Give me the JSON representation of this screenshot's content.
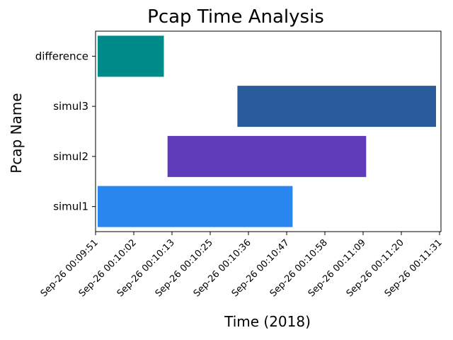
{
  "chart_data": {
    "type": "bar",
    "orientation": "horizontal-timeline",
    "title": "Pcap Time Analysis",
    "xlabel": "Time (2018)",
    "ylabel": "Pcap Name",
    "categories": [
      "simul1",
      "simul2",
      "simul3",
      "difference"
    ],
    "bars": [
      {
        "name": "simul1",
        "start": "2018-09-26 00:09:51",
        "end": "2018-09-26 00:10:44",
        "color": "#2b87f0"
      },
      {
        "name": "simul2",
        "start": "2018-09-26 00:10:10",
        "end": "2018-09-26 00:11:04",
        "color": "#5f3dba"
      },
      {
        "name": "simul3",
        "start": "2018-09-26 00:10:29",
        "end": "2018-09-26 00:11:23",
        "color": "#2a5b9b"
      },
      {
        "name": "difference",
        "start": "2018-09-26 00:09:51",
        "end": "2018-09-26 00:10:09",
        "color": "#008b8b"
      }
    ],
    "xticks": [
      "Sep-26  00:09:51",
      "Sep-26  00:10:02",
      "Sep-26  00:10:13",
      "Sep-26  00:10:25",
      "Sep-26  00:10:36",
      "Sep-26  00:10:47",
      "Sep-26  00:10:58",
      "Sep-26  00:11:09",
      "Sep-26  00:11:20",
      "Sep-26  00:11:31"
    ],
    "xlim": [
      "2018-09-26 00:09:51",
      "2018-09-26 00:11:23"
    ],
    "grid": false,
    "legend": "none"
  }
}
